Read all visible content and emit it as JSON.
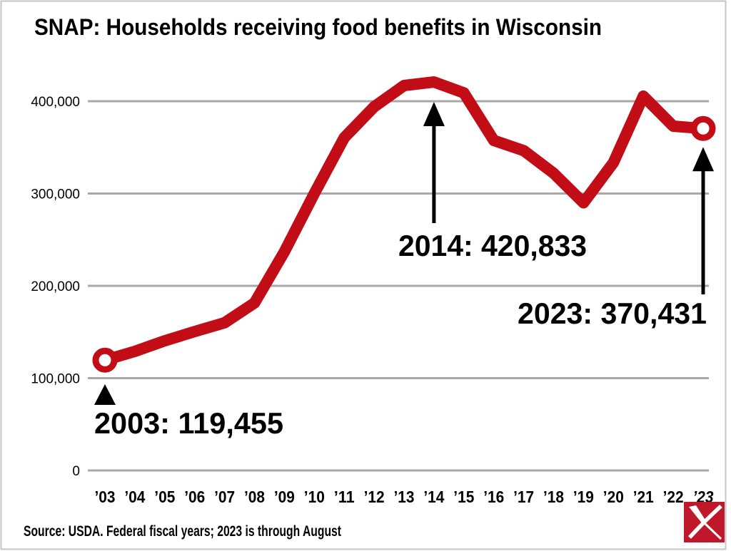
{
  "title": "SNAP: Households receiving food benefits in Wisconsin",
  "source": "Source: USDA. Federal fiscal years; 2023 is through August",
  "colors": {
    "line": "#c20d17",
    "grid": "#a8a8a8",
    "text": "#000000",
    "marker_fill": "#ffffff",
    "annotation_arrow": "#000000",
    "logo_red": "#c0182b",
    "border": "#c6c6c6",
    "background": "#ffffff"
  },
  "chart_data": {
    "type": "line",
    "title": "SNAP: Households receiving food benefits in Wisconsin",
    "x_tick_labels": [
      "’03",
      "’04",
      "’05",
      "’06",
      "’07",
      "’08",
      "’09",
      "’10",
      "’11",
      "’12",
      "’13",
      "’14",
      "’15",
      "’16",
      "’17",
      "’18",
      "’19",
      "’20",
      "’21",
      "’22",
      "’23"
    ],
    "italic_last_tick": true,
    "years": [
      2003,
      2004,
      2005,
      2006,
      2007,
      2008,
      2009,
      2010,
      2011,
      2012,
      2013,
      2014,
      2015,
      2016,
      2017,
      2018,
      2019,
      2020,
      2021,
      2022,
      2023
    ],
    "values": [
      119455,
      129000,
      140500,
      150500,
      160000,
      181500,
      237000,
      300000,
      360500,
      394000,
      417000,
      420833,
      409000,
      357500,
      346500,
      322000,
      290000,
      333500,
      405500,
      373000,
      370431
    ],
    "ylim": [
      0,
      450000
    ],
    "y_ticks": [
      {
        "label": "400,000",
        "value": 400000
      },
      {
        "label": "300,000",
        "value": 300000
      },
      {
        "label": "200,000",
        "value": 200000
      },
      {
        "label": "100,000",
        "value": 100000
      },
      {
        "label": "0",
        "value": 0
      }
    ],
    "grid": "horizontal",
    "legend": "none",
    "endpoint_marker_years": [
      2003,
      2023
    ],
    "annotations": [
      {
        "year": 2003,
        "value": 119455,
        "label": "2003: 119,455",
        "marker": "triangle-up"
      },
      {
        "year": 2014,
        "value": 420833,
        "label": "2014: 420,833",
        "marker": "arrow-up"
      },
      {
        "year": 2023,
        "value": 370431,
        "label": "2023: 370,431",
        "marker": "arrow-up"
      }
    ]
  },
  "logo": {
    "name": "publisher-logo"
  }
}
